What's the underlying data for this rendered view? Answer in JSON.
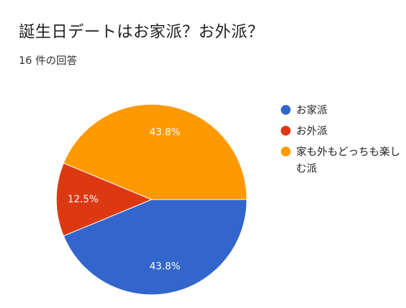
{
  "title": "誕生日デートはお家派？お外派？",
  "subtitle": "16 件の回答",
  "chart_data": {
    "type": "pie",
    "title": "誕生日デートはお家派？お外派？",
    "subtitle": "16 件の回答",
    "categories": [
      "お家派",
      "お外派",
      "家も外もどっちも楽しむ派"
    ],
    "values": [
      43.8,
      12.5,
      43.8
    ],
    "labels": [
      "43.8%",
      "12.5%",
      "43.8%"
    ],
    "colors": [
      "#3366cc",
      "#dc3912",
      "#ff9900"
    ],
    "legend_position": "right"
  },
  "legend": [
    {
      "label": "お家派",
      "color": "#3366cc"
    },
    {
      "label": "お外派",
      "color": "#dc3912"
    },
    {
      "label": "家も外もどっちも楽しむ派",
      "color": "#ff9900"
    }
  ]
}
